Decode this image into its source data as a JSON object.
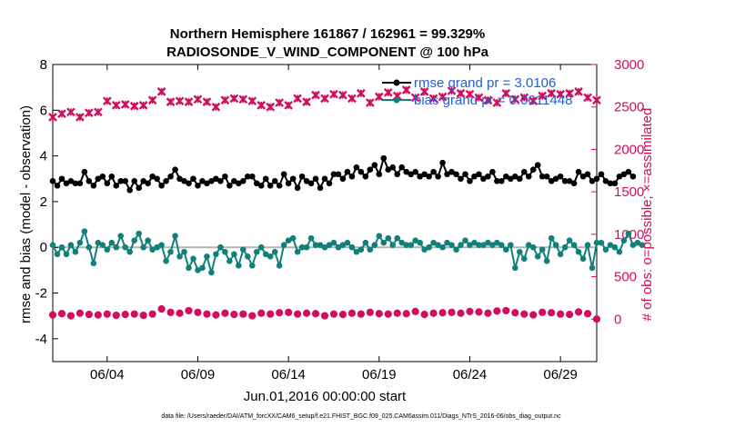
{
  "chart_data": {
    "type": "line",
    "title_line1": "Northern Hemisphere 161867 / 162961 = 99.329%",
    "title_line2": "RADIOSONDE_V_WIND_COMPONENT @ 100 hPa",
    "xlabel": "Jun.01,2016 00:00:00 start",
    "ylabel_left": "rmse and bias (model - observation)",
    "ylabel_right": "# of obs: o=possible; ×=assimilated",
    "ylim_left": [
      -5,
      8
    ],
    "ylim_right": [
      -500,
      3000
    ],
    "xlim": [
      1.0,
      31.0
    ],
    "x_ticks": [
      {
        "value": 4,
        "label": "06/04"
      },
      {
        "value": 9,
        "label": "06/09"
      },
      {
        "value": 14,
        "label": "06/14"
      },
      {
        "value": 19,
        "label": "06/19"
      },
      {
        "value": 24,
        "label": "06/24"
      },
      {
        "value": 29,
        "label": "06/29"
      }
    ],
    "y_ticks_left": [
      {
        "value": -4,
        "label": "-4"
      },
      {
        "value": -2,
        "label": "-2"
      },
      {
        "value": 0,
        "label": "0"
      },
      {
        "value": 2,
        "label": "2"
      },
      {
        "value": 4,
        "label": "4"
      },
      {
        "value": 6,
        "label": "6"
      },
      {
        "value": 8,
        "label": "8"
      }
    ],
    "y_ticks_right": [
      {
        "value": 0,
        "label": "0"
      },
      {
        "value": 500,
        "label": "500"
      },
      {
        "value": 1000,
        "label": "1000"
      },
      {
        "value": 1500,
        "label": "1500"
      },
      {
        "value": 2000,
        "label": "2000"
      },
      {
        "value": 2500,
        "label": "2500"
      },
      {
        "value": 3000,
        "label": "3000"
      }
    ],
    "zero_line": 0,
    "series": [
      {
        "name": "rmse grand pr = 3.0106",
        "color": "#000000",
        "axis": "left",
        "marker": "dot",
        "line": true,
        "x_start": 1.0,
        "x_step": 0.25,
        "values": [
          2.9,
          2.7,
          3.0,
          2.8,
          2.9,
          2.8,
          2.8,
          3.3,
          2.9,
          2.7,
          3.0,
          3.1,
          2.8,
          3.1,
          2.7,
          2.9,
          2.9,
          2.5,
          2.9,
          2.6,
          2.9,
          2.8,
          3.1,
          3.0,
          2.7,
          2.9,
          3.1,
          3.4,
          3.0,
          2.9,
          2.8,
          3.0,
          2.7,
          2.9,
          2.8,
          2.9,
          3.0,
          2.9,
          3.1,
          2.7,
          2.9,
          2.8,
          2.9,
          3.1,
          3.1,
          2.8,
          2.7,
          3.0,
          2.7,
          2.9,
          2.7,
          3.2,
          2.8,
          3.0,
          2.6,
          3.1,
          2.9,
          2.8,
          3.0,
          2.6,
          3.0,
          2.8,
          3.2,
          3.2,
          3.0,
          3.3,
          3.1,
          3.5,
          3.3,
          3.1,
          3.4,
          3.6,
          3.2,
          3.9,
          3.4,
          3.5,
          3.2,
          3.5,
          3.3,
          3.2,
          3.3,
          3.1,
          3.2,
          3.1,
          3.3,
          3.1,
          3.7,
          3.2,
          3.3,
          3.2,
          3.0,
          3.2,
          2.9,
          3.1,
          3.2,
          3.0,
          3.1,
          3.3,
          2.9,
          2.9,
          3.1,
          3.0,
          3.1,
          3.0,
          3.3,
          3.1,
          3.4,
          3.6,
          3.1,
          3.1,
          2.9,
          3.0,
          3.1,
          2.9,
          2.9,
          2.8,
          3.3,
          3.1,
          3.2,
          2.9,
          3.0,
          3.2,
          2.9,
          2.8,
          2.8,
          3.1,
          3.2,
          3.3,
          3.1
        ]
      },
      {
        "name": "bias grand pr = 0.0011448",
        "color": "#12807a",
        "axis": "left",
        "marker": "dot",
        "line": true,
        "x_start": 1.0,
        "x_step": 0.25,
        "values": [
          0.1,
          -0.3,
          0.0,
          -0.3,
          0.1,
          -0.2,
          0.2,
          0.7,
          0.0,
          -0.7,
          0.2,
          0.1,
          -0.1,
          0.2,
          0.0,
          0.5,
          0.0,
          -0.2,
          0.3,
          0.6,
          0.0,
          0.3,
          -0.1,
          0.0,
          0.1,
          -0.6,
          -0.2,
          0.5,
          -0.4,
          -0.2,
          -0.9,
          -0.5,
          -1.0,
          -0.9,
          -0.4,
          -1.1,
          -0.3,
          0.0,
          -0.2,
          -0.6,
          -0.3,
          -0.8,
          -0.1,
          -0.4,
          -0.8,
          -0.2,
          0.0,
          -0.3,
          -0.4,
          -0.2,
          -0.8,
          0.1,
          0.3,
          0.4,
          -0.2,
          0.0,
          0.0,
          0.4,
          0.1,
          0.1,
          0.0,
          0.1,
          0.2,
          0.0,
          0.1,
          0.2,
          0.0,
          -0.2,
          -0.1,
          0.2,
          -0.1,
          0.1,
          0.5,
          0.2,
          0.4,
          0.1,
          0.4,
          0.2,
          0.1,
          0.1,
          0.3,
          0.2,
          -0.1,
          0.0,
          0.2,
          0.1,
          0.0,
          0.2,
          0.1,
          -0.1,
          0.1,
          0.3,
          0.1,
          0.2,
          0.1,
          0.1,
          0.2,
          0.1,
          0.2,
          0.1,
          -0.1,
          0.1,
          -0.9,
          -0.2,
          -0.5,
          0.1,
          0.0,
          -0.4,
          -0.1,
          -0.6,
          0.4,
          0.1,
          -0.3,
          0.0,
          0.3,
          0.1,
          -0.2,
          -0.5,
          0.1,
          -0.9,
          0.2,
          0.2,
          -0.1,
          0.1,
          0.0,
          -0.2,
          0.3,
          0.6,
          0.1,
          0.2,
          0.1
        ]
      },
      {
        "name": "possible obs",
        "color": "#d10d5c",
        "axis": "right",
        "marker": "circle",
        "line": false,
        "x_start": 1.0,
        "x_step": 0.5,
        "values": [
          50,
          65,
          40,
          70,
          55,
          50,
          60,
          45,
          55,
          60,
          45,
          60,
          120,
          80,
          70,
          100,
          80,
          60,
          50,
          70,
          55,
          60,
          40,
          70,
          60,
          75,
          80,
          60,
          70,
          65,
          40,
          60,
          55,
          70,
          60,
          80,
          65,
          60,
          70,
          65,
          90,
          55,
          70,
          75,
          80,
          70,
          90,
          85,
          70,
          95,
          100,
          75,
          60,
          50,
          80,
          75,
          60,
          55,
          85,
          65,
          0
        ],
        "note": "approximate"
      },
      {
        "name": "assimilated obs",
        "color": "#d10d5c",
        "axis": "right",
        "marker": "x",
        "line": false,
        "x_start": 1.0,
        "x_step": 0.5,
        "values": [
          2380,
          2420,
          2440,
          2380,
          2430,
          2440,
          2570,
          2520,
          2530,
          2510,
          2520,
          2580,
          2680,
          2560,
          2570,
          2560,
          2590,
          2560,
          2500,
          2580,
          2600,
          2590,
          2570,
          2520,
          2500,
          2550,
          2520,
          2600,
          2560,
          2640,
          2600,
          2650,
          2640,
          2600,
          2660,
          2550,
          2620,
          2670,
          2630,
          2700,
          2610,
          2680,
          2600,
          2620,
          2690,
          2660,
          2650,
          2610,
          2580,
          2550,
          2660,
          2590,
          2610,
          2570,
          2630,
          2660,
          2650,
          2660,
          2680,
          2610,
          2580
        ]
      }
    ],
    "legend": [
      {
        "label": "rmse grand pr = 3.0106",
        "color": "#000000"
      },
      {
        "label": "bias grand pr = 0.0011448",
        "color": "#12807a"
      }
    ],
    "footer": "data file: /Users/raeder/DAI/ATM_forcXX/CAM6_setup/f.e21.FHIST_BGC.f09_025.CAM6assim.011/Diags_NTrS_2016-06/obs_diag_output.nc"
  }
}
